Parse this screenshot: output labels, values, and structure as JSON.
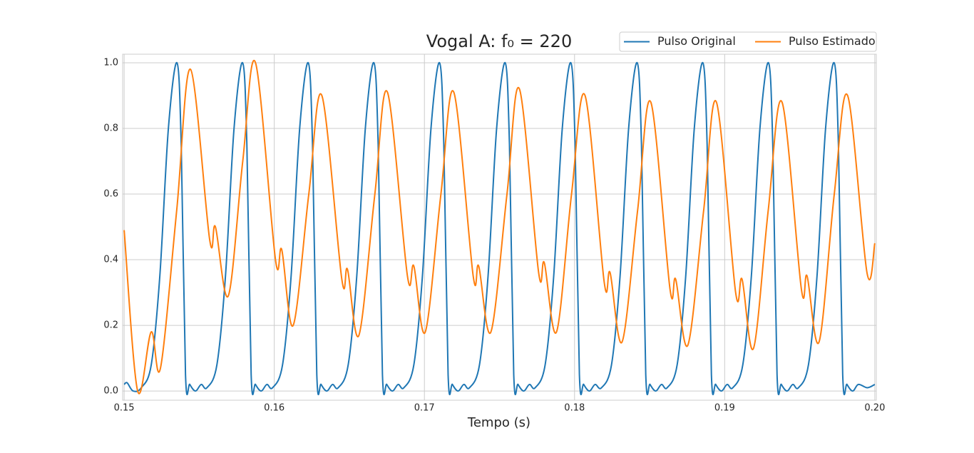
{
  "chart_data": {
    "type": "line",
    "title": "Vogal A: f₀ = 220",
    "x_label": "Tempo (s)",
    "xlim": [
      0.1499,
      0.2001
    ],
    "ylim": [
      -0.028,
      1.026
    ],
    "xticks": [
      0.15,
      0.16,
      0.17,
      0.18,
      0.19,
      {
        "value": 0.2,
        "label": "0.20"
      }
    ],
    "yticks": [
      {
        "value": 0,
        "label": "0.0"
      },
      0.2,
      0.4,
      0.6,
      0.8,
      {
        "value": 1,
        "label": "1.0"
      }
    ],
    "grid": true,
    "legend": "upper right",
    "series": [
      {
        "name": "Pulso Original",
        "color": "#1f77b4",
        "x": [
          0.15,
          0.1502,
          0.1506,
          0.151141,
          0.151806,
          0.152376,
          0.152947,
          0.153517,
          0.153802,
          0.154087,
          0.154373,
          0.154753,
          0.155133,
          0.155514,
          0.156179,
          0.156749,
          0.15732,
          0.15789,
          0.158175,
          0.15846,
          0.158746,
          0.159126,
          0.159506,
          0.159886,
          0.160551,
          0.161121,
          0.161692,
          0.162262,
          0.162547,
          0.162832,
          0.163118,
          0.163498,
          0.163878,
          0.164259,
          0.164924,
          0.165494,
          0.166065,
          0.166635,
          0.16692,
          0.167205,
          0.167491,
          0.167871,
          0.168251,
          0.168632,
          0.169297,
          0.169867,
          0.170438,
          0.171008,
          0.171293,
          0.171578,
          0.171864,
          0.172244,
          0.172624,
          0.173004,
          0.173669,
          0.174239,
          0.17481,
          0.17538,
          0.175665,
          0.17595,
          0.176236,
          0.176616,
          0.176996,
          0.177377,
          0.178042,
          0.178612,
          0.179183,
          0.179753,
          0.180038,
          0.180323,
          0.180609,
          0.180989,
          0.181369,
          0.181797,
          0.182462,
          0.183032,
          0.183603,
          0.184173,
          0.184458,
          0.184743,
          0.185029,
          0.185409,
          0.185789,
          0.18617,
          0.186835,
          0.187405,
          0.187976,
          0.188546,
          0.188831,
          0.189116,
          0.189402,
          0.189782,
          0.190162,
          0.190542,
          0.191207,
          0.191777,
          0.192348,
          0.192918,
          0.193203,
          0.193488,
          0.193774,
          0.194154,
          0.194534,
          0.194915,
          0.19558,
          0.19615,
          0.196721,
          0.197291,
          0.197576,
          0.197861,
          0.198147,
          0.198527,
          0.198907,
          0.1995,
          0.2
        ],
        "values": [
          0.02,
          0.025,
          0.0,
          0.01,
          0.08,
          0.35,
          0.8,
          1.0,
          0.75,
          0.05,
          0.02,
          0.0,
          0.02,
          0.01,
          0.08,
          0.35,
          0.8,
          1.0,
          0.75,
          0.05,
          0.02,
          0.0,
          0.02,
          0.01,
          0.08,
          0.35,
          0.8,
          1.0,
          0.75,
          0.05,
          0.02,
          0.0,
          0.02,
          0.01,
          0.08,
          0.35,
          0.8,
          1.0,
          0.75,
          0.05,
          0.02,
          0.0,
          0.02,
          0.01,
          0.08,
          0.35,
          0.8,
          1.0,
          0.75,
          0.05,
          0.02,
          0.0,
          0.02,
          0.01,
          0.08,
          0.35,
          0.8,
          1.0,
          0.75,
          0.05,
          0.02,
          0.0,
          0.02,
          0.01,
          0.08,
          0.35,
          0.8,
          1.0,
          0.75,
          0.05,
          0.02,
          0.0,
          0.02,
          0.01,
          0.08,
          0.35,
          0.8,
          1.0,
          0.75,
          0.05,
          0.02,
          0.0,
          0.02,
          0.01,
          0.08,
          0.35,
          0.8,
          1.0,
          0.75,
          0.05,
          0.02,
          0.0,
          0.02,
          0.01,
          0.08,
          0.35,
          0.8,
          1.0,
          0.75,
          0.05,
          0.02,
          0.0,
          0.02,
          0.01,
          0.08,
          0.35,
          0.8,
          1.0,
          0.75,
          0.05,
          0.02,
          0.0,
          0.02,
          0.01,
          0.02
        ]
      },
      {
        "name": "Pulso Estimado",
        "color": "#ff7f0e",
        "x": [
          0.15,
          0.1509,
          0.1518,
          0.15242,
          0.1535,
          0.15442,
          0.1557,
          0.15608,
          0.15694,
          0.1579,
          0.15875,
          0.16008,
          0.1605,
          0.16126,
          0.1623,
          0.16317,
          0.1645,
          0.16488,
          0.16564,
          0.1667,
          0.16754,
          0.16887,
          0.1693,
          0.17006,
          0.1711,
          0.17196,
          0.17325,
          0.17362,
          0.17443,
          0.1755,
          0.17633,
          0.17761,
          0.17799,
          0.1788,
          0.1798,
          0.1807,
          0.18198,
          0.18237,
          0.18317,
          0.1842,
          0.18508,
          0.18636,
          0.18674,
          0.18755,
          0.1886,
          0.18945,
          0.19073,
          0.19116,
          0.19192,
          0.1929,
          0.19382,
          0.19511,
          0.19549,
          0.19629,
          0.1973,
          0.19819,
          0.19948,
          0.2
        ],
        "values": [
          0.49,
          0.0,
          0.18,
          0.07,
          0.55,
          0.98,
          0.46,
          0.5,
          0.29,
          0.7,
          1.0,
          0.4,
          0.43,
          0.2,
          0.6,
          0.9,
          0.34,
          0.37,
          0.17,
          0.6,
          0.91,
          0.35,
          0.38,
          0.18,
          0.6,
          0.91,
          0.35,
          0.38,
          0.18,
          0.6,
          0.92,
          0.36,
          0.39,
          0.18,
          0.6,
          0.9,
          0.33,
          0.36,
          0.15,
          0.55,
          0.88,
          0.31,
          0.34,
          0.14,
          0.55,
          0.88,
          0.3,
          0.34,
          0.13,
          0.55,
          0.88,
          0.31,
          0.35,
          0.15,
          0.6,
          0.9,
          0.36,
          0.45
        ]
      }
    ]
  }
}
